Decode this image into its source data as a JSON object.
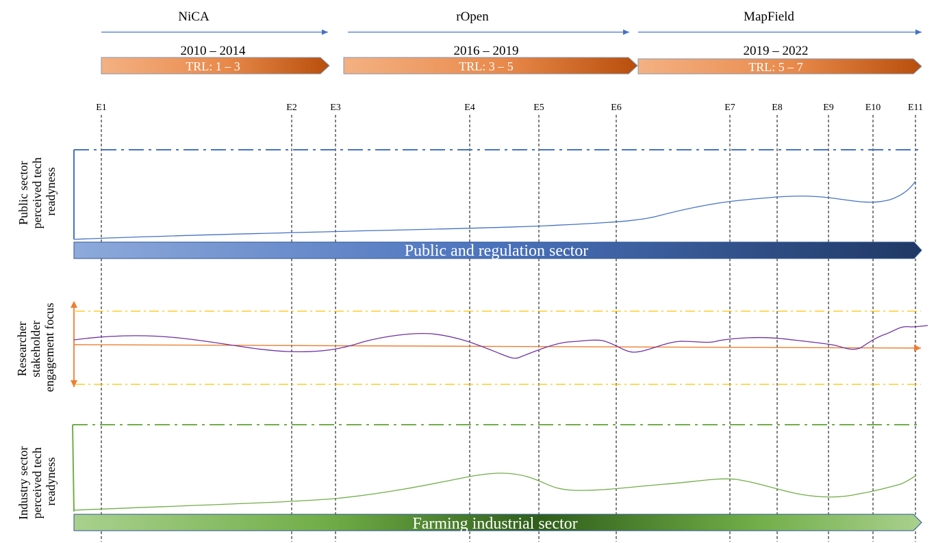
{
  "projects": [
    {
      "name": "NiCA",
      "years": "2010 – 2014",
      "trl": "TRL: 1 – 3"
    },
    {
      "name": "rOpen",
      "years": "2016 – 2019",
      "trl": "TRL: 3 – 5"
    },
    {
      "name": "MapField",
      "years": "2019 – 2022",
      "trl": "TRL: 5 – 7"
    }
  ],
  "events": [
    "E1",
    "E2",
    "E3",
    "E4",
    "E5",
    "E6",
    "E7",
    "E8",
    "E9",
    "E10",
    "E11"
  ],
  "panels": {
    "public": {
      "ylabel": [
        "Public sector",
        "perceived tech",
        "readyness"
      ],
      "band": "Public and regulation sector"
    },
    "researcher": {
      "ylabel": [
        "Researcher",
        "stakeholder",
        "engagement focus"
      ]
    },
    "industry": {
      "ylabel": [
        "Industry sector",
        "perceived tech",
        "readyness"
      ],
      "band": "Farming industrial sector"
    }
  },
  "colors": {
    "timeline_arrow": "#4472c4",
    "trl_dark": "#c55a11",
    "trl_light": "#f4b183",
    "public_line": "#4472c4",
    "researcher_line": "#7030a0",
    "researcher_axis": "#ed7d31",
    "researcher_bounds": "#ffc000",
    "industry_line": "#70ad47",
    "band_public_dark": "#1f3864",
    "band_public_light": "#8eaadb",
    "band_industry": "#70ad47"
  }
}
